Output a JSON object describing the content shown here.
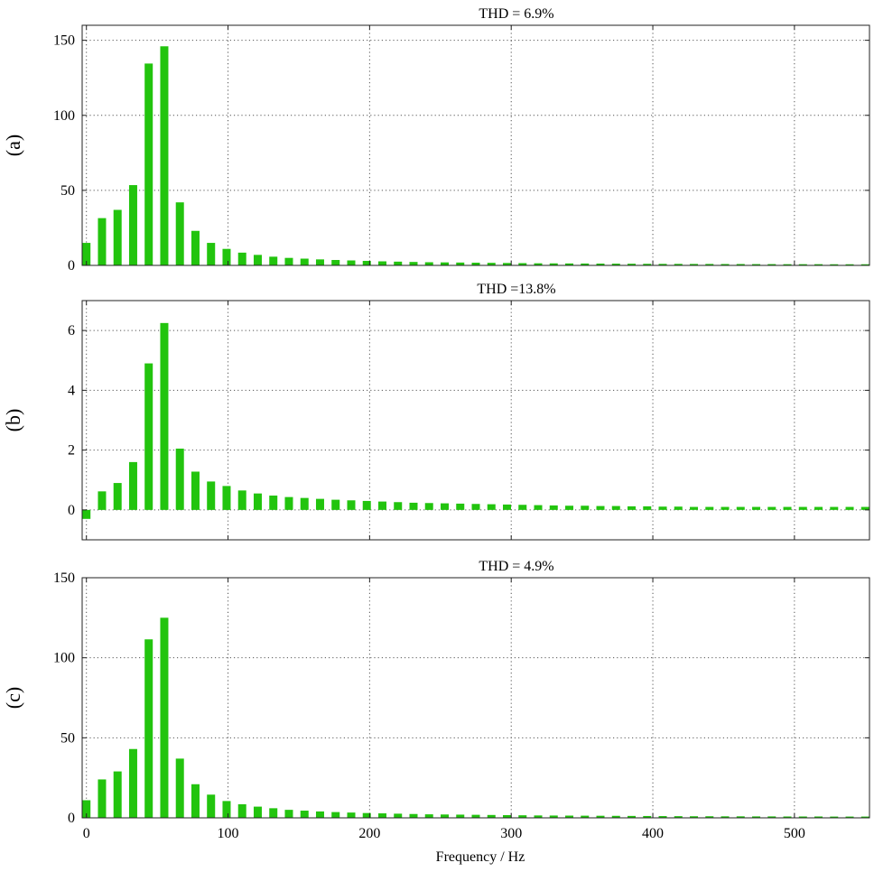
{
  "chart_data": [
    {
      "type": "bar",
      "panel_label": "(a)",
      "title": "THD = 6.9%",
      "xlabel": "",
      "ylabel": "",
      "xlim": [
        -3,
        553
      ],
      "ylim": [
        0,
        160
      ],
      "yticks": [
        0,
        50,
        100,
        150
      ],
      "xticks": [
        0,
        100,
        200,
        300,
        400,
        500
      ],
      "show_xtick_labels": false,
      "grid": true,
      "color": "#22c40e",
      "x": [
        0,
        11,
        22,
        33,
        44,
        55,
        66,
        77,
        88,
        99,
        110,
        121,
        132,
        143,
        154,
        165,
        176,
        187,
        198,
        209,
        220,
        231,
        242,
        253,
        264,
        275,
        286,
        297,
        308,
        319,
        330,
        341,
        352,
        363,
        374,
        385,
        396,
        407,
        418,
        429,
        440,
        451,
        462,
        473,
        484,
        495,
        506,
        517,
        528,
        539,
        550
      ],
      "values": [
        15,
        31.5,
        37,
        53.5,
        134.5,
        146,
        42,
        23,
        15,
        11,
        8.5,
        7,
        5.8,
        5,
        4.5,
        4,
        3.6,
        3.3,
        3,
        2.7,
        2.5,
        2.3,
        2.1,
        2,
        1.9,
        1.8,
        1.7,
        1.6,
        1.5,
        1.4,
        1.35,
        1.3,
        1.25,
        1.2,
        1.15,
        1.1,
        1.05,
        1,
        1,
        0.95,
        0.95,
        0.9,
        0.9,
        0.85,
        0.85,
        0.8,
        0.8,
        0.8,
        0.75,
        0.75,
        0.75
      ]
    },
    {
      "type": "bar",
      "panel_label": "(b)",
      "title": "THD =13.8%",
      "xlabel": "",
      "ylabel": "",
      "xlim": [
        -3,
        553
      ],
      "ylim": [
        -1,
        7
      ],
      "yticks": [
        0,
        2,
        4,
        6
      ],
      "xticks": [
        0,
        100,
        200,
        300,
        400,
        500
      ],
      "show_xtick_labels": false,
      "grid": true,
      "color": "#22c40e",
      "x": [
        0,
        11,
        22,
        33,
        44,
        55,
        66,
        77,
        88,
        99,
        110,
        121,
        132,
        143,
        154,
        165,
        176,
        187,
        198,
        209,
        220,
        231,
        242,
        253,
        264,
        275,
        286,
        297,
        308,
        319,
        330,
        341,
        352,
        363,
        374,
        385,
        396,
        407,
        418,
        429,
        440,
        451,
        462,
        473,
        484,
        495,
        506,
        517,
        528,
        539,
        550
      ],
      "values": [
        -0.3,
        0.62,
        0.9,
        1.6,
        4.9,
        6.25,
        2.05,
        1.28,
        0.95,
        0.8,
        0.65,
        0.55,
        0.48,
        0.43,
        0.4,
        0.37,
        0.34,
        0.32,
        0.3,
        0.28,
        0.26,
        0.24,
        0.23,
        0.22,
        0.21,
        0.2,
        0.19,
        0.18,
        0.17,
        0.16,
        0.15,
        0.14,
        0.14,
        0.13,
        0.13,
        0.12,
        0.12,
        0.11,
        0.11,
        0.1,
        0.1,
        0.1,
        0.1,
        0.1,
        0.1,
        0.1,
        0.1,
        0.1,
        0.1,
        0.1,
        0.1
      ]
    },
    {
      "type": "bar",
      "panel_label": "(c)",
      "title": "THD = 4.9%",
      "xlabel": "Frequency / Hz",
      "ylabel": "",
      "xlim": [
        -3,
        553
      ],
      "ylim": [
        0,
        150
      ],
      "yticks": [
        0,
        50,
        100,
        150
      ],
      "xticks": [
        0,
        100,
        200,
        300,
        400,
        500
      ],
      "show_xtick_labels": true,
      "grid": true,
      "color": "#22c40e",
      "x": [
        0,
        11,
        22,
        33,
        44,
        55,
        66,
        77,
        88,
        99,
        110,
        121,
        132,
        143,
        154,
        165,
        176,
        187,
        198,
        209,
        220,
        231,
        242,
        253,
        264,
        275,
        286,
        297,
        308,
        319,
        330,
        341,
        352,
        363,
        374,
        385,
        396,
        407,
        418,
        429,
        440,
        451,
        462,
        473,
        484,
        495,
        506,
        517,
        528,
        539,
        550
      ],
      "values": [
        11,
        24,
        29,
        43,
        111.5,
        125,
        37,
        21,
        14.5,
        10.5,
        8.5,
        7,
        6,
        5,
        4.5,
        4,
        3.6,
        3.3,
        3,
        2.8,
        2.6,
        2.4,
        2.2,
        2.1,
        2,
        1.9,
        1.8,
        1.7,
        1.6,
        1.5,
        1.45,
        1.4,
        1.35,
        1.3,
        1.25,
        1.2,
        1.15,
        1.1,
        1.05,
        1,
        1,
        0.95,
        0.95,
        0.9,
        0.9,
        0.85,
        0.85,
        0.85,
        0.8,
        0.8,
        0.8
      ]
    }
  ]
}
